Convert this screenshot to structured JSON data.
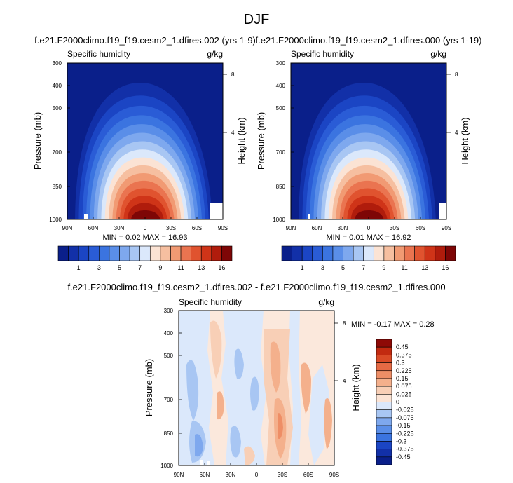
{
  "title": "DJF",
  "chart_data": [
    {
      "type": "heatmap",
      "title": "f.e21.F2000climo.f19_f19.cesm2_1.dfires.002 (yrs 1-9)",
      "left_label": "Specific humidity",
      "right_label": "g/kg",
      "ylabel": "Pressure (mb)",
      "ylabel_right": "Height (km)",
      "x_ticks": [
        "90N",
        "60N",
        "30N",
        "0",
        "30S",
        "60S",
        "90S"
      ],
      "y_ticks": [
        "300",
        "400",
        "500",
        "700",
        "850",
        "1000"
      ],
      "y_right_ticks": [
        "8",
        "4"
      ],
      "stats": "MIN =  0.02  MAX = 16.93",
      "min": 0.02,
      "max": 16.93,
      "colorbar_labels": [
        "1",
        "3",
        "5",
        "7",
        "9",
        "11",
        "13",
        "16"
      ],
      "colorbar_levels": [
        0.5,
        1,
        2,
        3,
        4,
        5,
        6,
        7,
        8,
        9,
        10,
        11,
        12,
        13,
        14,
        16
      ]
    },
    {
      "type": "heatmap",
      "title": "f.e21.F2000climo.f19_f19.cesm2_1.dfires.000 (yrs 1-19)",
      "left_label": "Specific humidity",
      "right_label": "g/kg",
      "ylabel": "Pressure (mb)",
      "ylabel_right": "Height (km)",
      "x_ticks": [
        "90N",
        "60N",
        "30N",
        "0",
        "30S",
        "60S",
        "90S"
      ],
      "y_ticks": [
        "300",
        "400",
        "500",
        "700",
        "850",
        "1000"
      ],
      "y_right_ticks": [
        "8",
        "4"
      ],
      "stats": "MIN =  0.01  MAX = 16.92",
      "min": 0.01,
      "max": 16.92,
      "colorbar_labels": [
        "1",
        "3",
        "5",
        "7",
        "9",
        "11",
        "13",
        "16"
      ],
      "colorbar_levels": [
        0.5,
        1,
        2,
        3,
        4,
        5,
        6,
        7,
        8,
        9,
        10,
        11,
        12,
        13,
        14,
        16
      ]
    },
    {
      "type": "heatmap",
      "title": "f.e21.F2000climo.f19_f19.cesm2_1.dfires.002 - f.e21.F2000climo.f19_f19.cesm2_1.dfires.000",
      "left_label": "Specific humidity",
      "right_label": "g/kg",
      "ylabel": "Pressure (mb)",
      "ylabel_right": "Height (km)",
      "x_ticks": [
        "90N",
        "60N",
        "30N",
        "0",
        "30S",
        "60S",
        "90S"
      ],
      "y_ticks": [
        "300",
        "400",
        "500",
        "700",
        "850",
        "1000"
      ],
      "y_right_ticks": [
        "8",
        "4"
      ],
      "stats": "MIN = -0.17  MAX =  0.28",
      "min": -0.17,
      "max": 0.28,
      "colorbar_labels": [
        "0.45",
        "0.375",
        "0.3",
        "0.225",
        "0.15",
        "0.075",
        "0.025",
        "0",
        "-0.025",
        "-0.075",
        "-0.15",
        "-0.225",
        "-0.3",
        "-0.375",
        "-0.45"
      ]
    }
  ],
  "colors": {
    "humidity": [
      "#0a1f8a",
      "#1230a8",
      "#1b45c4",
      "#2a5cd6",
      "#3b74e0",
      "#5a8ee8",
      "#7ea8ee",
      "#a8c6f3",
      "#dbe8fb",
      "#fbe3d4",
      "#f6bfa0",
      "#f19a73",
      "#ea7450",
      "#e0532f",
      "#cf3418",
      "#b01c0c",
      "#7e0606"
    ],
    "diff": [
      "#0a1f8a",
      "#1230a8",
      "#1b45c4",
      "#3b74e0",
      "#5a8ee8",
      "#7ea8ee",
      "#a8c6f3",
      "#dbe8fb",
      "#fbe3d4",
      "#f8cfb6",
      "#f4b08c",
      "#ee8e66",
      "#e66a44",
      "#d94a26",
      "#c22a10",
      "#8e0a06"
    ]
  }
}
